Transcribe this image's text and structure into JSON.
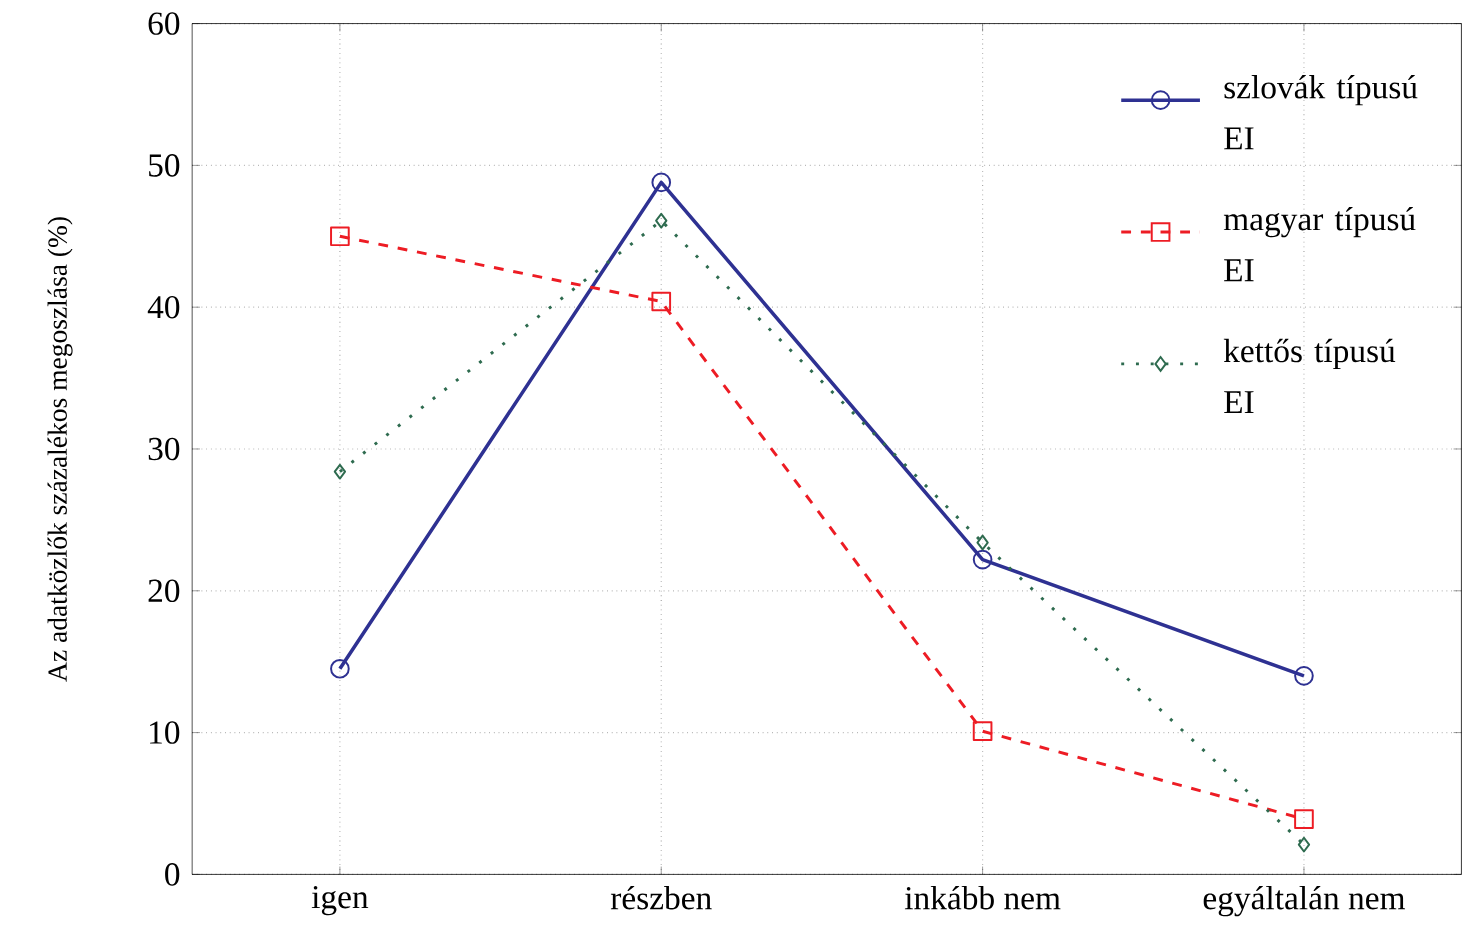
{
  "chart_data": {
    "type": "line",
    "ylabel": "Az adatközlők százalékos megoszlása (%)",
    "categories": [
      "igen",
      "részben",
      "inkább nem",
      "egyáltalán nem"
    ],
    "series": [
      {
        "name": "szlovák típusú EI",
        "color": "#2e3192",
        "values": [
          14.5,
          48.8,
          22.2,
          14.0
        ],
        "marker": "circle",
        "line_style": "solid"
      },
      {
        "name": "magyar típusú EI",
        "color": "#ed1c24",
        "values": [
          45.0,
          40.4,
          10.1,
          3.9
        ],
        "marker": "square",
        "line_style": "dashed"
      },
      {
        "name": "kettős típusú EI",
        "color": "#2e6b4f",
        "values": [
          28.4,
          46.1,
          23.4,
          2.1
        ],
        "marker": "diamond",
        "line_style": "dotted"
      }
    ],
    "ylim": [
      0,
      60
    ],
    "yticks": [
      0,
      10,
      20,
      30,
      40,
      50,
      60
    ],
    "grid": true,
    "legend": "top right"
  }
}
